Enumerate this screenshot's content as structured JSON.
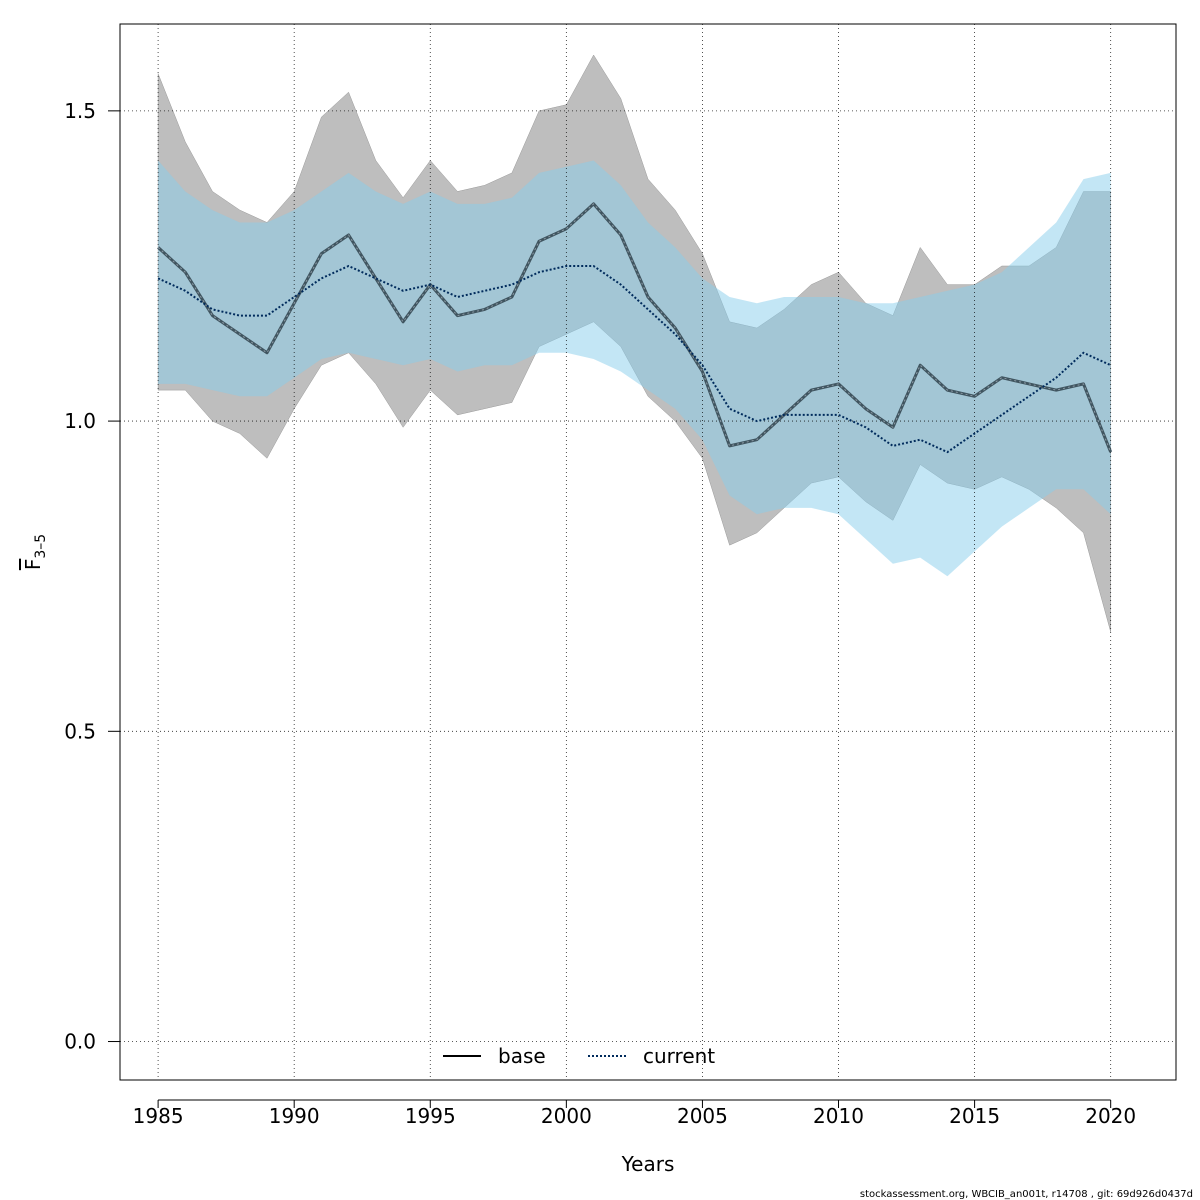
{
  "chart_data": {
    "type": "line",
    "xlabel": "Years",
    "ylabel": "F",
    "ylabel_sub": "3–5",
    "xlim": [
      1983.6,
      2022.4
    ],
    "ylim": [
      -0.062,
      1.64
    ],
    "xticks": [
      1985,
      1990,
      1995,
      2000,
      2005,
      2010,
      2015,
      2020
    ],
    "xtick_labels": [
      "1985",
      "1990",
      "1995",
      "2000",
      "2005",
      "2010",
      "2015",
      "2020"
    ],
    "yticks": [
      0.0,
      0.5,
      1.0,
      1.5
    ],
    "ytick_labels": [
      "0.0",
      "0.5",
      "1.0",
      "1.5"
    ],
    "grid": true,
    "legend_position": "bottom-center",
    "x": [
      1985,
      1986,
      1987,
      1988,
      1989,
      1990,
      1991,
      1992,
      1993,
      1994,
      1995,
      1996,
      1997,
      1998,
      1999,
      2000,
      2001,
      2002,
      2003,
      2004,
      2005,
      2006,
      2007,
      2008,
      2009,
      2010,
      2011,
      2012,
      2013,
      2014,
      2015,
      2016,
      2017,
      2018,
      2019,
      2020
    ],
    "series": [
      {
        "name": "base",
        "style": "solid",
        "color": "#405560",
        "band_color": "#bebebe",
        "values": [
          1.28,
          1.24,
          1.17,
          1.14,
          1.11,
          1.19,
          1.27,
          1.3,
          1.23,
          1.16,
          1.22,
          1.17,
          1.18,
          1.2,
          1.29,
          1.31,
          1.35,
          1.3,
          1.2,
          1.15,
          1.08,
          0.96,
          0.97,
          1.01,
          1.05,
          1.06,
          1.02,
          0.99,
          1.09,
          1.05,
          1.04,
          1.07,
          1.06,
          1.05,
          1.06,
          0.95
        ],
        "lower": [
          1.05,
          1.05,
          1.0,
          0.98,
          0.94,
          1.02,
          1.09,
          1.11,
          1.06,
          0.99,
          1.05,
          1.01,
          1.02,
          1.03,
          1.12,
          1.14,
          1.16,
          1.12,
          1.04,
          1.0,
          0.94,
          0.8,
          0.82,
          0.86,
          0.9,
          0.91,
          0.87,
          0.84,
          0.93,
          0.9,
          0.89,
          0.91,
          0.89,
          0.86,
          0.82,
          0.66
        ],
        "upper": [
          1.56,
          1.45,
          1.37,
          1.34,
          1.32,
          1.37,
          1.49,
          1.53,
          1.42,
          1.36,
          1.42,
          1.37,
          1.38,
          1.4,
          1.5,
          1.51,
          1.59,
          1.52,
          1.39,
          1.34,
          1.27,
          1.16,
          1.15,
          1.18,
          1.22,
          1.24,
          1.19,
          1.17,
          1.28,
          1.22,
          1.22,
          1.25,
          1.25,
          1.28,
          1.37,
          1.37
        ]
      },
      {
        "name": "current",
        "style": "dotted",
        "color": "#002b5c",
        "band_color": "#87ceeb",
        "values": [
          1.23,
          1.21,
          1.18,
          1.17,
          1.17,
          1.2,
          1.23,
          1.25,
          1.23,
          1.21,
          1.22,
          1.2,
          1.21,
          1.22,
          1.24,
          1.25,
          1.25,
          1.22,
          1.18,
          1.14,
          1.09,
          1.02,
          1.0,
          1.01,
          1.01,
          1.01,
          0.99,
          0.96,
          0.97,
          0.95,
          0.98,
          1.01,
          1.04,
          1.07,
          1.11,
          1.09
        ],
        "lower": [
          1.06,
          1.06,
          1.05,
          1.04,
          1.04,
          1.07,
          1.1,
          1.11,
          1.1,
          1.09,
          1.1,
          1.08,
          1.09,
          1.09,
          1.11,
          1.11,
          1.1,
          1.08,
          1.05,
          1.02,
          0.97,
          0.88,
          0.85,
          0.86,
          0.86,
          0.85,
          0.81,
          0.77,
          0.78,
          0.75,
          0.79,
          0.83,
          0.86,
          0.89,
          0.89,
          0.85
        ],
        "upper": [
          1.42,
          1.37,
          1.34,
          1.32,
          1.32,
          1.34,
          1.37,
          1.4,
          1.37,
          1.35,
          1.37,
          1.35,
          1.35,
          1.36,
          1.4,
          1.41,
          1.42,
          1.38,
          1.32,
          1.28,
          1.23,
          1.2,
          1.19,
          1.2,
          1.2,
          1.2,
          1.19,
          1.19,
          1.2,
          1.21,
          1.22,
          1.24,
          1.28,
          1.32,
          1.39,
          1.4
        ]
      }
    ]
  },
  "footer": "stockassessment.org, WBCIB_an001t, r14708 , git: 69d926d0437d"
}
